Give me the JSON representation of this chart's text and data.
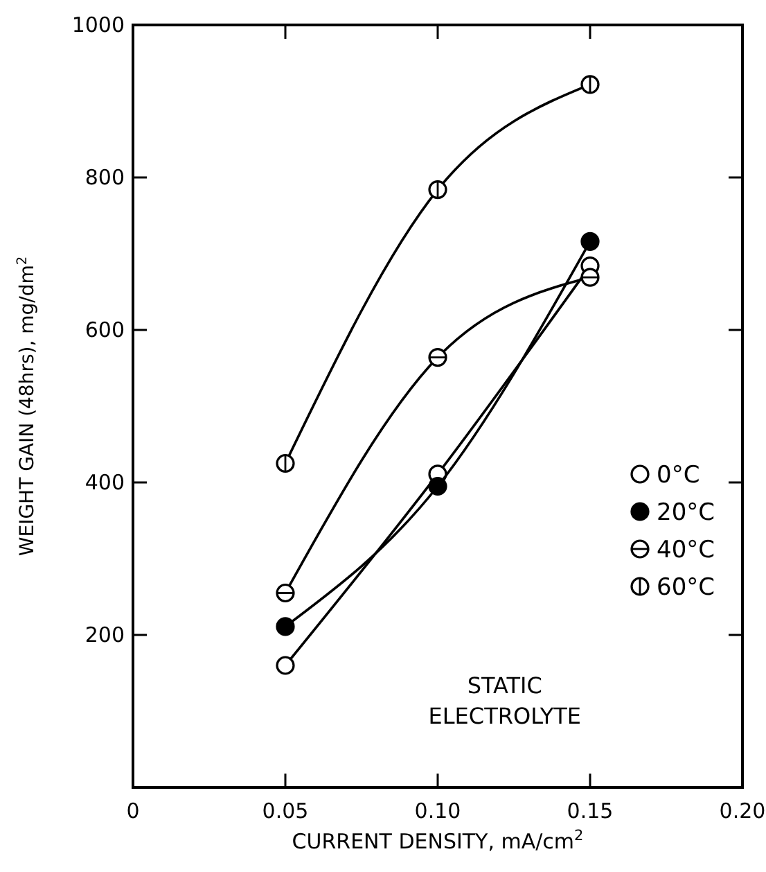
{
  "chart_data": {
    "type": "line",
    "xlabel": "CURRENT DENSITY, mA/cm$^{2}$",
    "ylabel": "WEIGHT GAIN (48hrs),  mg/dm$^{2}$",
    "x": [
      0.05,
      0.1,
      0.15
    ],
    "series": [
      {
        "name": "0°C",
        "color": "#000000",
        "values": [
          160,
          411,
          684
        ]
      },
      {
        "name": "20°C",
        "color": "#000000",
        "values": [
          211,
          395,
          716
        ]
      },
      {
        "name": "40°C",
        "color": "#000000",
        "values": [
          255,
          564,
          669
        ]
      },
      {
        "name": "60°C",
        "color": "#000000",
        "values": [
          425,
          784,
          922
        ]
      }
    ],
    "xlim": [
      0,
      0.2
    ],
    "xticks": [
      0,
      {
        "value": 0.05,
        "label": "0.05"
      },
      {
        "value": 0.1,
        "label": "0.10"
      },
      {
        "value": 0.15,
        "label": "0.15"
      },
      {
        "value": 0.2,
        "label": "0.20"
      }
    ],
    "ylim": [
      0,
      1000
    ],
    "yticks": [
      {
        "value": 0,
        "label": null
      },
      200,
      400,
      600,
      800,
      1000
    ],
    "marker": "circle",
    "line_style": "solid",
    "grid": false,
    "legend": "right",
    "annotations": [
      "STATIC ELECTROLYTE"
    ]
  }
}
